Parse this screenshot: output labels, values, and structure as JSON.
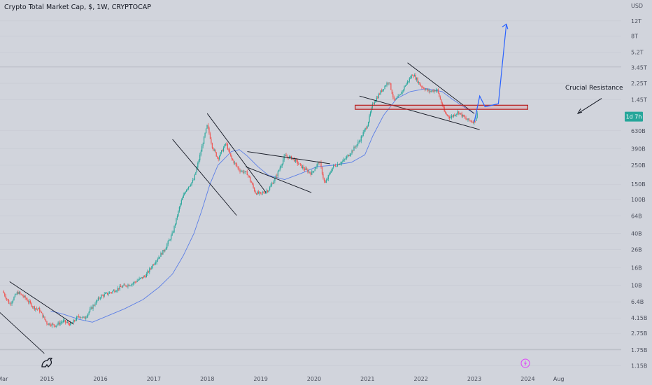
{
  "header": {
    "title": "Crypto Total Market Cap, $, 1W, CRYPTOCAP"
  },
  "price_badge": {
    "value": "1d 7h",
    "color": "#26a69a"
  },
  "annotations": {
    "resistance_label": "Crucial Resistance"
  },
  "colors": {
    "up": "#26a69a",
    "down": "#ef5350",
    "ma": "#5b7ee6",
    "projection": "#2962ff",
    "resistance": "#b71c1c",
    "trendline": "#131722"
  },
  "icons": {
    "logo": "tradingview-logo-icon",
    "event": "lightning-icon"
  },
  "chart_data": {
    "type": "candlestick",
    "title": "Crypto Total Market Cap, $, 1W, CRYPTOCAP",
    "y_unit": "USD",
    "scale": "log",
    "ylim": [
      1000000000.0,
      15000000000000.0
    ],
    "y_ticks": [
      {
        "value": 12000000000000.0,
        "label": "12T"
      },
      {
        "value": 8000000000000.0,
        "label": "8T"
      },
      {
        "value": 5200000000000.0,
        "label": "5.2T"
      },
      {
        "value": 3450000000000.0,
        "label": "3.45T"
      },
      {
        "value": 2250000000000.0,
        "label": "2.25T"
      },
      {
        "value": 1450000000000.0,
        "label": "1.45T"
      },
      {
        "value": 630000000000.0,
        "label": "630B"
      },
      {
        "value": 390000000000.0,
        "label": "390B"
      },
      {
        "value": 250000000000.0,
        "label": "250B"
      },
      {
        "value": 150000000000.0,
        "label": "150B"
      },
      {
        "value": 100000000000.0,
        "label": "100B"
      },
      {
        "value": 64000000000.0,
        "label": "64B"
      },
      {
        "value": 40000000000.0,
        "label": "40B"
      },
      {
        "value": 26000000000.0,
        "label": "26B"
      },
      {
        "value": 16000000000.0,
        "label": "16B"
      },
      {
        "value": 10000000000.0,
        "label": "10B"
      },
      {
        "value": 6400000000.0,
        "label": "6.4B"
      },
      {
        "value": 4150000000.0,
        "label": "4.15B"
      },
      {
        "value": 2750000000.0,
        "label": "2.75B"
      },
      {
        "value": 1750000000.0,
        "label": "1.75B"
      },
      {
        "value": 1150000000.0,
        "label": "1.15B"
      }
    ],
    "xlim": [
      2014.12,
      2025.75
    ],
    "x_ticks": [
      {
        "value": 2014.17,
        "label": "Mar"
      },
      {
        "value": 2015.0,
        "label": "2015"
      },
      {
        "value": 2016.0,
        "label": "2016"
      },
      {
        "value": 2017.0,
        "label": "2017"
      },
      {
        "value": 2018.0,
        "label": "2018"
      },
      {
        "value": 2019.0,
        "label": "2019"
      },
      {
        "value": 2020.0,
        "label": "2020"
      },
      {
        "value": 2021.0,
        "label": "2021"
      },
      {
        "value": 2022.0,
        "label": "2022"
      },
      {
        "value": 2023.0,
        "label": "2023"
      },
      {
        "value": 2024.0,
        "label": "2024"
      },
      {
        "value": 2024.58,
        "label": "Aug"
      }
    ],
    "price_keypoints": [
      [
        2014.17,
        8500000000.0
      ],
      [
        2014.3,
        6000000000.0
      ],
      [
        2014.45,
        8300000000.0
      ],
      [
        2014.6,
        7000000000.0
      ],
      [
        2014.75,
        5500000000.0
      ],
      [
        2014.85,
        5200000000.0
      ],
      [
        2015.0,
        3600000000.0
      ],
      [
        2015.15,
        3400000000.0
      ],
      [
        2015.3,
        3800000000.0
      ],
      [
        2015.45,
        3500000000.0
      ],
      [
        2015.6,
        4400000000.0
      ],
      [
        2015.7,
        4100000000.0
      ],
      [
        2015.85,
        5600000000.0
      ],
      [
        2016.0,
        7400000000.0
      ],
      [
        2016.2,
        8300000000.0
      ],
      [
        2016.4,
        9600000000.0
      ],
      [
        2016.6,
        10500000000.0
      ],
      [
        2016.85,
        13000000000.0
      ],
      [
        2017.0,
        18000000000.0
      ],
      [
        2017.2,
        26000000000.0
      ],
      [
        2017.35,
        40000000000.0
      ],
      [
        2017.5,
        90000000000.0
      ],
      [
        2017.6,
        130000000000.0
      ],
      [
        2017.75,
        170000000000.0
      ],
      [
        2017.85,
        300000000000.0
      ],
      [
        2017.95,
        550000000000.0
      ],
      [
        2018.0,
        730000000000.0
      ],
      [
        2018.1,
        400000000000.0
      ],
      [
        2018.2,
        300000000000.0
      ],
      [
        2018.35,
        450000000000.0
      ],
      [
        2018.45,
        300000000000.0
      ],
      [
        2018.6,
        220000000000.0
      ],
      [
        2018.75,
        200000000000.0
      ],
      [
        2018.9,
        120000000000.0
      ],
      [
        2019.0,
        115000000000.0
      ],
      [
        2019.15,
        130000000000.0
      ],
      [
        2019.3,
        190000000000.0
      ],
      [
        2019.45,
        320000000000.0
      ],
      [
        2019.6,
        300000000000.0
      ],
      [
        2019.8,
        230000000000.0
      ],
      [
        2019.95,
        200000000000.0
      ],
      [
        2020.1,
        280000000000.0
      ],
      [
        2020.2,
        150000000000.0
      ],
      [
        2020.35,
        240000000000.0
      ],
      [
        2020.55,
        280000000000.0
      ],
      [
        2020.7,
        360000000000.0
      ],
      [
        2020.85,
        480000000000.0
      ],
      [
        2021.0,
        750000000000.0
      ],
      [
        2021.1,
        1300000000000.0
      ],
      [
        2021.3,
        2000000000000.0
      ],
      [
        2021.4,
        2400000000000.0
      ],
      [
        2021.5,
        1400000000000.0
      ],
      [
        2021.6,
        1600000000000.0
      ],
      [
        2021.7,
        2100000000000.0
      ],
      [
        2021.85,
        2900000000000.0
      ],
      [
        2022.0,
        2100000000000.0
      ],
      [
        2022.15,
        1800000000000.0
      ],
      [
        2022.3,
        1900000000000.0
      ],
      [
        2022.45,
        1000000000000.0
      ],
      [
        2022.55,
        900000000000.0
      ],
      [
        2022.7,
        1050000000000.0
      ],
      [
        2022.85,
        850000000000.0
      ],
      [
        2023.0,
        800000000000.0
      ],
      [
        2023.06,
        1000000000000.0
      ]
    ],
    "moving_average": [
      [
        2015.07,
        5000000000.0
      ],
      [
        2015.3,
        4600000000.0
      ],
      [
        2015.6,
        4000000000.0
      ],
      [
        2015.85,
        3700000000.0
      ],
      [
        2016.1,
        4300000000.0
      ],
      [
        2016.45,
        5300000000.0
      ],
      [
        2016.8,
        6800000000.0
      ],
      [
        2017.1,
        9500000000.0
      ],
      [
        2017.35,
        13500000000.0
      ],
      [
        2017.55,
        22000000000.0
      ],
      [
        2017.75,
        40000000000.0
      ],
      [
        2017.9,
        75000000000.0
      ],
      [
        2018.05,
        150000000000.0
      ],
      [
        2018.2,
        250000000000.0
      ],
      [
        2018.45,
        360000000000.0
      ],
      [
        2018.6,
        380000000000.0
      ],
      [
        2018.75,
        320000000000.0
      ],
      [
        2018.95,
        240000000000.0
      ],
      [
        2019.15,
        190000000000.0
      ],
      [
        2019.45,
        170000000000.0
      ],
      [
        2019.75,
        200000000000.0
      ],
      [
        2020.05,
        240000000000.0
      ],
      [
        2020.35,
        250000000000.0
      ],
      [
        2020.7,
        270000000000.0
      ],
      [
        2020.95,
        330000000000.0
      ],
      [
        2021.1,
        550000000000.0
      ],
      [
        2021.3,
        950000000000.0
      ],
      [
        2021.55,
        1500000000000.0
      ],
      [
        2021.8,
        1800000000000.0
      ],
      [
        2022.1,
        1950000000000.0
      ],
      [
        2022.4,
        1800000000000.0
      ],
      [
        2022.6,
        1450000000000.0
      ],
      [
        2022.8,
        1200000000000.0
      ],
      [
        2023.0,
        1000000000000.0
      ]
    ],
    "channels": [
      {
        "a": [
          [
            2014.3,
            11000000000.0
          ],
          [
            2015.5,
            3500000000.0
          ]
        ],
        "b": [
          [
            2013.95,
            6000000000.0
          ],
          [
            2014.95,
            1600000000.0
          ]
        ]
      },
      {
        "a": [
          [
            2018.0,
            1000000000000.0
          ],
          [
            2019.1,
            120000000000.0
          ]
        ],
        "b": [
          [
            2017.35,
            500000000000.0
          ],
          [
            2018.55,
            65000000000.0
          ]
        ]
      },
      {
        "a": [
          [
            2018.75,
            360000000000.0
          ],
          [
            2020.3,
            260000000000.0
          ]
        ],
        "b": [
          [
            2018.72,
            240000000000.0
          ],
          [
            2019.95,
            120000000000.0
          ]
        ]
      },
      {
        "a": [
          [
            2021.75,
            3900000000000.0
          ],
          [
            2023.0,
            1000000000000.0
          ]
        ],
        "b": [
          [
            2020.85,
            1600000000000.0
          ],
          [
            2023.1,
            650000000000.0
          ]
        ]
      }
    ],
    "resistance_zone": {
      "x": [
        2020.77,
        2024.0
      ],
      "y": [
        1120000000000.0,
        1250000000000.0
      ]
    },
    "projection": [
      [
        2023.0,
        800000000000.0
      ],
      [
        2023.1,
        1600000000000.0
      ],
      [
        2023.2,
        1200000000000.0
      ],
      [
        2023.45,
        1300000000000.0
      ],
      [
        2023.6,
        11000000000000.0
      ],
      [
        2023.68,
        9500000000000.0
      ]
    ],
    "legend": "none",
    "grid": true
  }
}
